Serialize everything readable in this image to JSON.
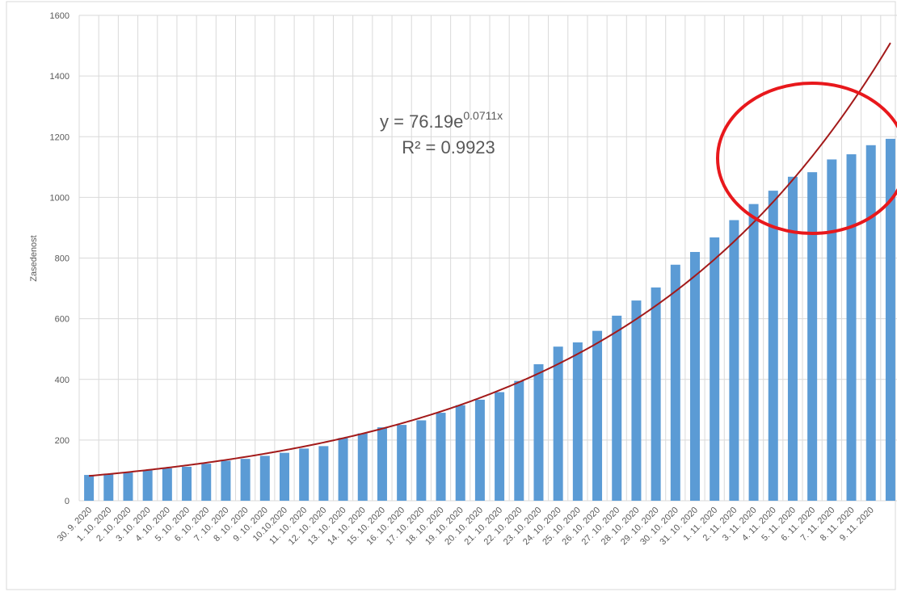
{
  "chart_data": {
    "type": "bar",
    "y_label": "Zasedenost",
    "categories": [
      "30. 9. 2020",
      "1. 10. 2020",
      "2. 10. 2020",
      "3. 10. 2020",
      "4. 10. 2020",
      "5. 10. 2020",
      "6. 10. 2020",
      "7. 10. 2020",
      "8. 10. 2020",
      "9. 10. 2020",
      "10.10.2020",
      "11. 10. 2020",
      "12. 10. 2020",
      "13. 10. 2020",
      "14. 10. 2020",
      "15. 10. 2020",
      "16. 10. 2020",
      "17. 10. 2020",
      "18. 10. 2020",
      "19. 10. 2020",
      "20. 10. 2020",
      "21. 10. 2020",
      "22. 10. 2020",
      "23. 10. 2020",
      "24. 10. 2020",
      "25. 10. 2020",
      "26. 10. 2020",
      "27. 10. 2020",
      "28. 10. 2020",
      "29. 10. 2020",
      "30. 10. 2020",
      "31. 10. 2020",
      "1. 11. 2020",
      "2. 11. 2020",
      "3. 11. 2020",
      "4. 11. 2020",
      "5. 11. 2020",
      "6. 11. 2020",
      "7. 11. 2020",
      "8. 11. 2020",
      "9. 11. 2020",
      null
    ],
    "values": [
      85,
      87,
      93,
      100,
      107,
      112,
      122,
      132,
      138,
      148,
      158,
      172,
      180,
      207,
      222,
      242,
      250,
      265,
      290,
      315,
      333,
      358,
      395,
      450,
      508,
      522,
      560,
      610,
      660,
      703,
      778,
      820,
      868,
      925,
      978,
      1022,
      1068,
      1083,
      1125,
      1142,
      1172,
      1193
    ],
    "color": "#5b9bd5",
    "trendline": {
      "a": 76.19,
      "b": 0.0711,
      "color": "#a31a1a"
    },
    "equation": {
      "base": "y = 76.19e",
      "exponent": "0.0711x",
      "r2": "R² = 0.9923"
    },
    "ylim": [
      0,
      1600
    ],
    "yticks": [
      0,
      200,
      400,
      600,
      800,
      1000,
      1200,
      1400,
      1600
    ],
    "grid": true
  }
}
